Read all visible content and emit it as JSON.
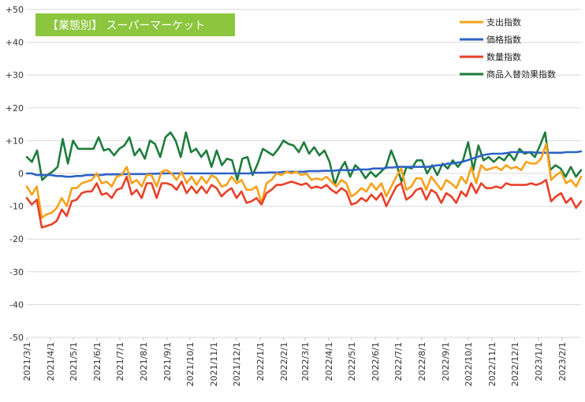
{
  "chart_data": {
    "type": "line",
    "title": "【業態別】 スーパーマーケット",
    "title_box_color": "#8cc63f",
    "ylim": [
      -50,
      50
    ],
    "y_ticks": [
      "+50",
      "+40",
      "+30",
      "+20",
      "+10",
      "0",
      "-10",
      "-20",
      "-30",
      "-40",
      "-50"
    ],
    "y_tick_values": [
      50,
      40,
      30,
      20,
      10,
      0,
      -10,
      -20,
      -30,
      -40,
      -50
    ],
    "x_start": "2021-03-01",
    "x_end": "2023-02-26",
    "x_ticks": [
      "2021/3/1",
      "2021/4/1",
      "2021/5/1",
      "2021/6/1",
      "2021/7/1",
      "2021/8/1",
      "2021/9/1",
      "2021/10/1",
      "2021/11/1",
      "2021/12/1",
      "2022/1/1",
      "2022/2/1",
      "2022/3/1",
      "2022/4/1",
      "2022/5/1",
      "2022/6/1",
      "2022/7/1",
      "2022/8/1",
      "2022/9/1",
      "2022/10/1",
      "2022/11/1",
      "2022/12/1",
      "2023/1/1",
      "2023/2/1"
    ],
    "grid": "horizontal",
    "legend_position": "top-right",
    "series": [
      {
        "name": "支出指数",
        "color": "#f7a11a",
        "values": [
          -4,
          -6.5,
          -4,
          -13.5,
          -12.5,
          -12,
          -10.5,
          -7.5,
          -10,
          -4.5,
          -4.5,
          -3,
          -2.5,
          -2,
          0,
          -3,
          -2.5,
          -4,
          -1,
          -0.5,
          2,
          -3,
          -2,
          -4,
          -0.5,
          -0.5,
          -4,
          0.5,
          1,
          0,
          -2,
          0.5,
          -3,
          -1,
          -3.5,
          -1,
          -3,
          -0.5,
          -1.5,
          -4,
          -3.5,
          -1,
          -3,
          -2,
          -5,
          -5,
          -4,
          -9,
          -3,
          -2,
          0,
          -0.5,
          0.5,
          0,
          0.5,
          -0.5,
          0,
          -2,
          -1.5,
          -2,
          -1,
          -2.5,
          -4,
          -2,
          -3,
          -7,
          -6,
          -4.5,
          -5.5,
          -3,
          -5,
          -3,
          -7,
          -4,
          -1,
          1.5,
          -5,
          -4,
          -1.5,
          -1.5,
          -5,
          -1,
          -3,
          -5,
          -2,
          -3,
          -4.5,
          -1,
          -3,
          2,
          -3,
          2.5,
          1,
          1.5,
          2,
          1,
          2.5,
          1.5,
          2,
          1,
          3.5,
          3,
          3,
          4.5,
          9,
          -2,
          -0.5,
          0.5,
          -3,
          -2,
          -4,
          -1
        ]
      },
      {
        "name": "価格指数",
        "color": "#2e62c6",
        "values": [
          0,
          0,
          -0.5,
          -0.5,
          -0.5,
          -0.5,
          -0.8,
          -0.8,
          -1,
          -1,
          -0.8,
          -0.8,
          -0.5,
          -0.5,
          -0.5,
          -0.5,
          -0.3,
          -0.3,
          -0.3,
          -0.3,
          -0.2,
          -0.2,
          -0.2,
          -0.2,
          -0.2,
          -0.1,
          -0.1,
          0,
          0,
          0,
          0,
          0,
          0,
          0,
          0,
          0,
          0,
          0,
          0,
          0,
          0,
          0,
          0,
          0,
          0,
          0,
          0.2,
          0.2,
          0.2,
          0.3,
          0.3,
          0.3,
          0.5,
          0.5,
          0.5,
          0.5,
          0.5,
          0.7,
          0.7,
          0.7,
          0.8,
          0.8,
          0.8,
          1,
          1,
          1,
          1,
          1.2,
          1.2,
          1.2,
          1.5,
          1.5,
          1.5,
          1.8,
          1.8,
          2,
          2,
          2,
          2,
          2,
          2,
          2,
          2.2,
          2.5,
          2.5,
          3,
          3,
          3.3,
          3.5,
          4,
          4.5,
          5,
          5.5,
          5.8,
          6,
          6,
          6,
          6.2,
          6.5,
          6.5,
          6.5,
          6.5,
          6.5,
          6.3,
          6.3,
          6.3,
          6.3,
          6.3,
          6.3,
          6.5,
          6.5,
          6.5,
          6.7
        ]
      },
      {
        "name": "数量指数",
        "color": "#e8402a",
        "values": [
          -7.5,
          -9.5,
          -8,
          -16.5,
          -16,
          -15.5,
          -14.5,
          -11,
          -13,
          -8.5,
          -8,
          -6,
          -5.5,
          -5.5,
          -3,
          -6.5,
          -6,
          -7.5,
          -5,
          -4.5,
          -1,
          -6.5,
          -5,
          -7.5,
          -3,
          -3,
          -7.5,
          -3,
          -3,
          -3.5,
          -5,
          -2.5,
          -6,
          -4,
          -6,
          -4,
          -6,
          -3.5,
          -4.5,
          -7,
          -5.5,
          -4.5,
          -7.5,
          -5.5,
          -9,
          -8.5,
          -7.5,
          -9.5,
          -6,
          -5,
          -3.5,
          -3.5,
          -3,
          -2.5,
          -3,
          -3.5,
          -3,
          -4.5,
          -4,
          -4.5,
          -3.5,
          -5,
          -6,
          -4.5,
          -5.5,
          -9.5,
          -9,
          -7.5,
          -8.5,
          -6.5,
          -8,
          -6,
          -10,
          -7,
          -4,
          -3,
          -8,
          -7,
          -5,
          -4.5,
          -8,
          -5,
          -6,
          -9,
          -6,
          -7,
          -9,
          -5.5,
          -7,
          -3,
          -6,
          -3,
          -4.5,
          -4.5,
          -4,
          -4.5,
          -3,
          -3.5,
          -3.5,
          -3.5,
          -3.5,
          -3,
          -3.5,
          -3,
          -2,
          -8.5,
          -7,
          -6,
          -9,
          -7.5,
          -10.5,
          -8.5
        ]
      },
      {
        "name": "商品入替効果指数",
        "color": "#1e7c3c",
        "values": [
          5,
          3.5,
          7,
          -2,
          -0.5,
          0.5,
          2,
          10.5,
          3,
          10,
          7.5,
          7.5,
          7.5,
          7.5,
          11,
          7,
          7.5,
          5.5,
          7.5,
          8.5,
          11,
          5.5,
          7.5,
          4.5,
          10,
          9,
          5,
          11,
          12.5,
          10,
          5,
          12.5,
          6.5,
          7.5,
          5,
          7,
          2,
          7,
          2.5,
          4.5,
          4,
          -2,
          4.5,
          5,
          -0.5,
          3,
          7.5,
          6.5,
          5.5,
          7.5,
          10,
          9,
          8.5,
          6.5,
          9.5,
          6,
          8,
          5.5,
          7,
          3.5,
          -3.5,
          1,
          3.5,
          -1,
          2.5,
          1,
          -1.5,
          0.5,
          -1,
          0.5,
          2,
          7,
          3,
          -2.5,
          2,
          1.5,
          4,
          4,
          0,
          2.5,
          -0.5,
          3,
          1.5,
          4,
          2,
          4,
          9.5,
          1,
          8.5,
          4,
          5,
          3.5,
          5,
          4,
          6,
          4,
          7.5,
          6,
          6.5,
          5,
          8.5,
          12.5,
          1,
          2.5,
          1.5,
          -1,
          2,
          -1,
          1
        ]
      }
    ]
  }
}
